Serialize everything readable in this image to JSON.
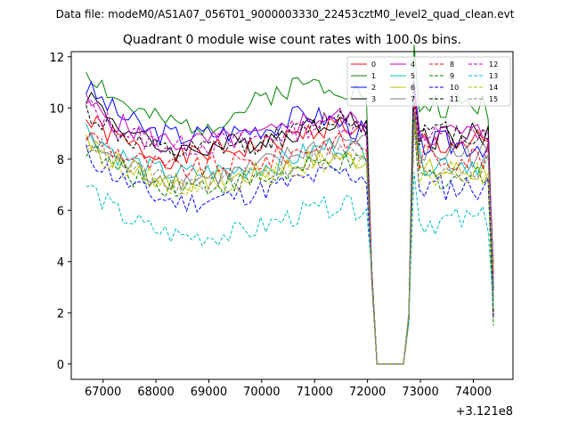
{
  "suptitle": "Data file: modeM0/AS1A07_056T01_9000003330_22453cztM0_level2_quad_clean.evt",
  "chart_data": {
    "type": "line",
    "title": "Quadrant 0 module wise count rates with 100.0s bins.",
    "xlabel": "",
    "ylabel": "",
    "x_offset_label": "+3.121e8",
    "xlim": [
      66400,
      74750
    ],
    "ylim": [
      -0.6,
      12.2
    ],
    "x_ticks": [
      67000,
      68000,
      69000,
      70000,
      71000,
      72000,
      73000,
      74000
    ],
    "x_tick_labels": [
      "67000",
      "68000",
      "69000",
      "70000",
      "71000",
      "72000",
      "73000",
      "74000"
    ],
    "y_ticks": [
      0,
      2,
      4,
      6,
      8,
      10,
      12
    ],
    "y_tick_labels": [
      "0",
      "2",
      "4",
      "6",
      "8",
      "10",
      "12"
    ],
    "grid": false,
    "legend": {
      "placement": "top-right",
      "columns": 4
    },
    "x_start": 66680,
    "x_step": 100,
    "series": [
      {
        "name": "0",
        "color": "#ff0000",
        "dash": "solid",
        "anchors": [
          9.5,
          8.8,
          8.2,
          8.0,
          8.3,
          8.4,
          8.6,
          9.0,
          9.4,
          9.0
        ],
        "seed": 1
      },
      {
        "name": "1",
        "color": "#008000",
        "dash": "solid",
        "anchors": [
          11.5,
          10.3,
          9.6,
          9.3,
          9.4,
          9.9,
          10.6,
          11.0,
          10.9,
          10.5
        ],
        "seed": 2
      },
      {
        "name": "2",
        "color": "#0000ff",
        "dash": "solid",
        "anchors": [
          10.8,
          9.8,
          9.1,
          8.9,
          9.0,
          9.1,
          9.3,
          9.8,
          9.5,
          9.0
        ],
        "seed": 3
      },
      {
        "name": "3",
        "color": "#000000",
        "dash": "solid",
        "anchors": [
          10.6,
          9.4,
          8.6,
          8.3,
          8.5,
          8.6,
          8.9,
          9.2,
          9.6,
          9.3
        ],
        "seed": 4
      },
      {
        "name": "4",
        "color": "#bf00bf",
        "dash": "solid",
        "anchors": [
          10.2,
          9.4,
          8.9,
          8.6,
          8.7,
          8.8,
          9.0,
          9.5,
          9.7,
          9.4
        ],
        "seed": 5
      },
      {
        "name": "5",
        "color": "#00bfbf",
        "dash": "solid",
        "anchors": [
          9.2,
          8.2,
          7.6,
          7.4,
          7.5,
          7.6,
          7.8,
          8.2,
          8.6,
          8.3
        ],
        "seed": 6
      },
      {
        "name": "6",
        "color": "#bfbf00",
        "dash": "solid",
        "anchors": [
          8.9,
          7.9,
          7.3,
          7.1,
          7.2,
          7.3,
          7.6,
          7.9,
          8.1,
          7.9
        ],
        "seed": 7
      },
      {
        "name": "7",
        "color": "#808080",
        "dash": "solid",
        "anchors": [
          8.8,
          7.9,
          7.4,
          7.2,
          7.3,
          7.5,
          7.9,
          8.3,
          8.8,
          8.6
        ],
        "seed": 8
      },
      {
        "name": "8",
        "color": "#ff0000",
        "dash": "dashed",
        "anchors": [
          9.0,
          8.3,
          7.8,
          7.6,
          7.7,
          7.8,
          8.0,
          8.4,
          8.7,
          8.5
        ],
        "seed": 9
      },
      {
        "name": "9",
        "color": "#008000",
        "dash": "dashed",
        "anchors": [
          8.5,
          7.6,
          7.1,
          6.9,
          7.0,
          7.1,
          7.3,
          7.6,
          7.9,
          7.7
        ],
        "seed": 10
      },
      {
        "name": "10",
        "color": "#0000ff",
        "dash": "dashed",
        "anchors": [
          8.2,
          7.3,
          6.6,
          6.3,
          6.4,
          6.6,
          6.9,
          7.2,
          7.5,
          7.3
        ],
        "seed": 11
      },
      {
        "name": "11",
        "color": "#000000",
        "dash": "dashed",
        "anchors": [
          9.9,
          9.0,
          8.4,
          8.2,
          8.4,
          8.5,
          8.8,
          9.1,
          9.7,
          9.4
        ],
        "seed": 12
      },
      {
        "name": "12",
        "color": "#bf00bf",
        "dash": "dashed",
        "anchors": [
          10.1,
          9.2,
          8.7,
          8.5,
          8.6,
          8.7,
          8.9,
          9.2,
          9.5,
          9.2
        ],
        "seed": 13
      },
      {
        "name": "13",
        "color": "#00bfbf",
        "dash": "dashed",
        "anchors": [
          7.0,
          5.9,
          5.3,
          5.0,
          5.0,
          5.1,
          5.5,
          5.9,
          6.2,
          6.0
        ],
        "seed": 14
      },
      {
        "name": "14",
        "color": "#bfbf00",
        "dash": "dashed",
        "anchors": [
          8.6,
          7.8,
          7.3,
          7.0,
          7.1,
          7.2,
          7.4,
          7.7,
          8.0,
          7.8
        ],
        "seed": 15
      },
      {
        "name": "15",
        "color": "#808080",
        "dash": "dashed",
        "anchors": [
          8.9,
          7.9,
          7.3,
          7.0,
          7.1,
          7.2,
          7.5,
          7.9,
          8.3,
          8.1
        ],
        "seed": 16
      }
    ],
    "gap": {
      "drop_start_x": 71980,
      "zero_start_x": 72180,
      "zero_end_x": 72680,
      "rise_x": 72880,
      "after_anchors_note": "values after gap ramp back to the pre-gap level"
    },
    "end_x": 74380
  }
}
